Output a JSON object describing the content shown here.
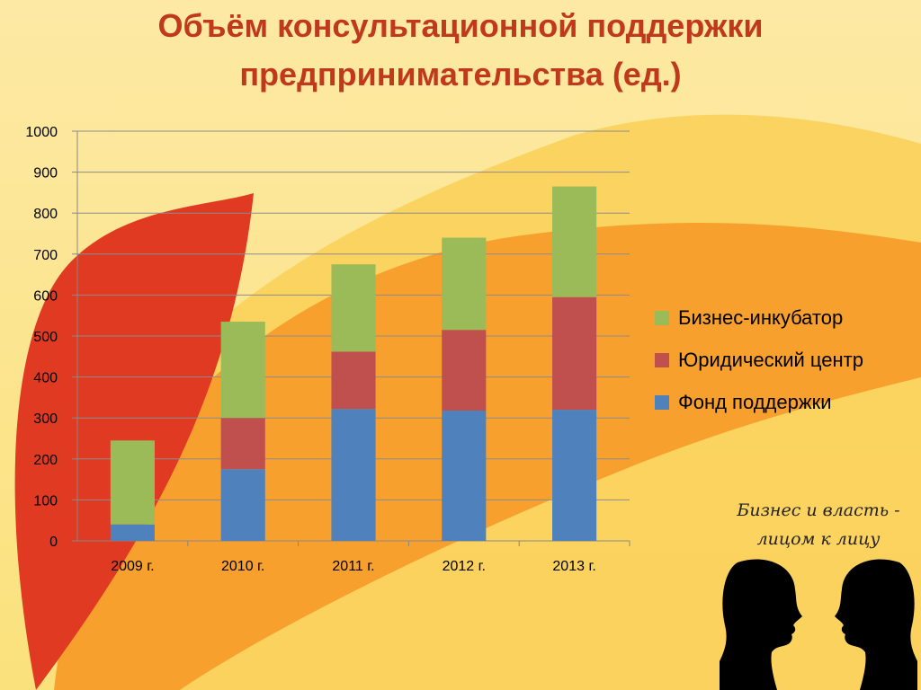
{
  "title": {
    "line1": "Объём консультационной поддержки",
    "line2": "предпринимательства (ед.)"
  },
  "badge": {
    "line1": "Бизнес и власть -",
    "line2": "лицом к лицу"
  },
  "colors": {
    "background": "#fde9a8",
    "title": "#c0391c",
    "fond": "#4f81bd",
    "yur": "#c0504d",
    "biz": "#9bbb59"
  },
  "chart_data": {
    "type": "bar",
    "stacked": true,
    "title": "Объём консультационной поддержки предпринимательства (ед.)",
    "xlabel": "",
    "ylabel": "",
    "categories": [
      "2009 г.",
      "2010 г.",
      "2011 г.",
      "2012 г.",
      "2013 г."
    ],
    "series": [
      {
        "name": "Фонд поддержки",
        "color": "#4f81bd",
        "values": [
          40,
          175,
          322,
          318,
          320
        ]
      },
      {
        "name": "Юридический центр",
        "color": "#c0504d",
        "values": [
          0,
          125,
          140,
          197,
          275
        ]
      },
      {
        "name": "Бизнес-инкубатор",
        "color": "#9bbb59",
        "values": [
          205,
          235,
          213,
          225,
          270
        ]
      }
    ],
    "ylim": [
      0,
      1000
    ],
    "yticks": [
      "0",
      "100",
      "200",
      "300",
      "400",
      "500",
      "600",
      "700",
      "800",
      "900",
      "1000"
    ],
    "grid": true,
    "legend_position": "right",
    "legend": [
      "Бизнес-инкубатор",
      "Юридический центр",
      "Фонд поддержки"
    ]
  }
}
